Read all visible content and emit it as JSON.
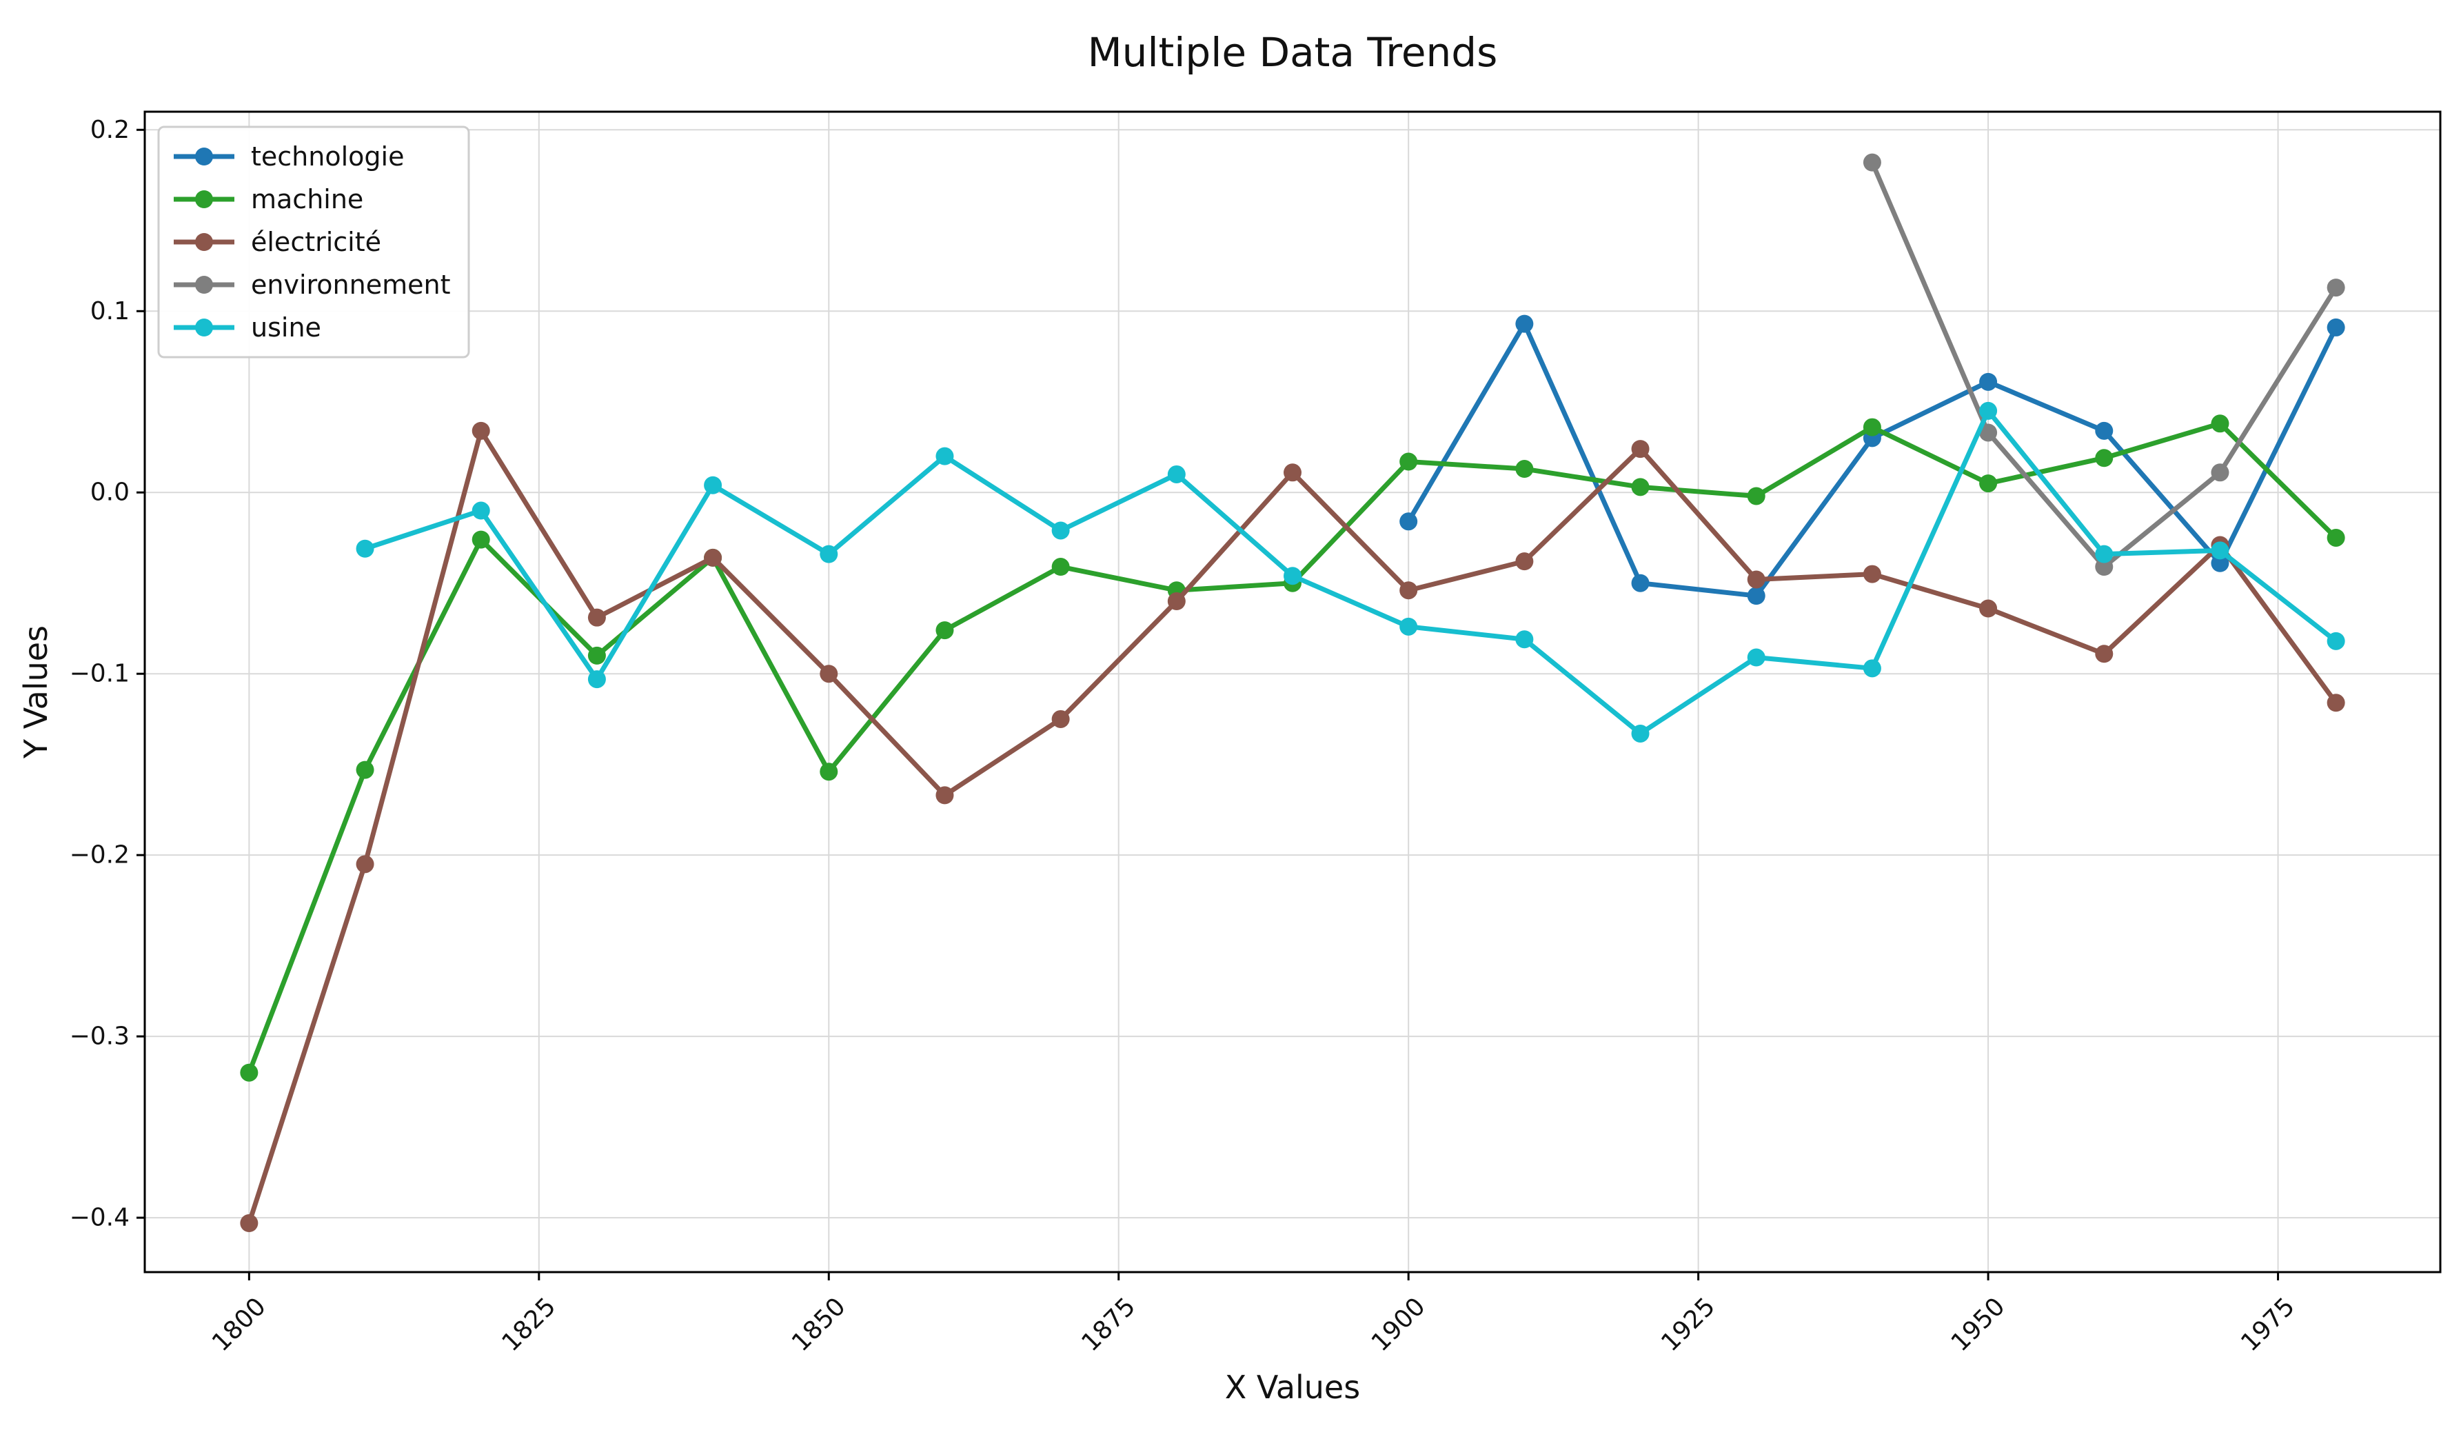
{
  "chart_data": {
    "type": "line",
    "title": "Multiple Data Trends",
    "xlabel": "X Values",
    "ylabel": "Y Values",
    "xlim": [
      1791,
      1989
    ],
    "ylim": [
      -0.43,
      0.21
    ],
    "x_ticks": [
      1800,
      1825,
      1850,
      1875,
      1900,
      1925,
      1950,
      1975
    ],
    "x_tick_labels": [
      "1800",
      "1825",
      "1850",
      "1875",
      "1900",
      "1925",
      "1950",
      "1975"
    ],
    "y_ticks": [
      -0.4,
      -0.3,
      -0.2,
      -0.1,
      0.0,
      0.1,
      0.2
    ],
    "y_tick_labels": [
      "−0.4",
      "−0.3",
      "−0.2",
      "−0.1",
      "0.0",
      "0.1",
      "0.2"
    ],
    "grid": true,
    "legend_position": "upper-left",
    "series": [
      {
        "name": "technologie",
        "color": "#1f77b4",
        "x": [
          1900,
          1910,
          1920,
          1930,
          1940,
          1950,
          1960,
          1970,
          1980
        ],
        "y": [
          -0.016,
          0.093,
          -0.05,
          -0.057,
          0.03,
          0.061,
          0.034,
          -0.039,
          0.091
        ]
      },
      {
        "name": "machine",
        "color": "#2ca02c",
        "x": [
          1800,
          1810,
          1820,
          1830,
          1840,
          1850,
          1860,
          1870,
          1880,
          1890,
          1900,
          1910,
          1920,
          1930,
          1940,
          1950,
          1960,
          1970,
          1980
        ],
        "y": [
          -0.32,
          -0.153,
          -0.026,
          -0.09,
          -0.036,
          -0.154,
          -0.076,
          -0.041,
          -0.054,
          -0.05,
          0.017,
          0.013,
          0.003,
          -0.002,
          0.036,
          0.005,
          0.019,
          0.038,
          -0.025
        ]
      },
      {
        "name": "électricité",
        "color": "#8c564b",
        "x": [
          1800,
          1810,
          1820,
          1830,
          1840,
          1850,
          1860,
          1870,
          1880,
          1890,
          1900,
          1910,
          1920,
          1930,
          1940,
          1950,
          1960,
          1970,
          1980
        ],
        "y": [
          -0.403,
          -0.205,
          0.034,
          -0.069,
          -0.036,
          -0.1,
          -0.167,
          -0.125,
          -0.06,
          0.011,
          -0.054,
          -0.038,
          0.024,
          -0.048,
          -0.045,
          -0.064,
          -0.089,
          -0.029,
          -0.116
        ]
      },
      {
        "name": "environnement",
        "color": "#7f7f7f",
        "x": [
          1940,
          1950,
          1960,
          1970,
          1980
        ],
        "y": [
          0.182,
          0.033,
          -0.041,
          0.011,
          0.113
        ]
      },
      {
        "name": "usine",
        "color": "#17becf",
        "x": [
          1810,
          1820,
          1830,
          1840,
          1850,
          1860,
          1870,
          1880,
          1890,
          1900,
          1910,
          1920,
          1930,
          1940,
          1950,
          1960,
          1970,
          1980
        ],
        "y": [
          -0.031,
          -0.01,
          -0.103,
          0.004,
          -0.034,
          0.02,
          -0.021,
          0.01,
          -0.046,
          -0.074,
          -0.081,
          -0.133,
          -0.091,
          -0.097,
          0.045,
          -0.034,
          -0.032,
          -0.082
        ]
      }
    ]
  }
}
